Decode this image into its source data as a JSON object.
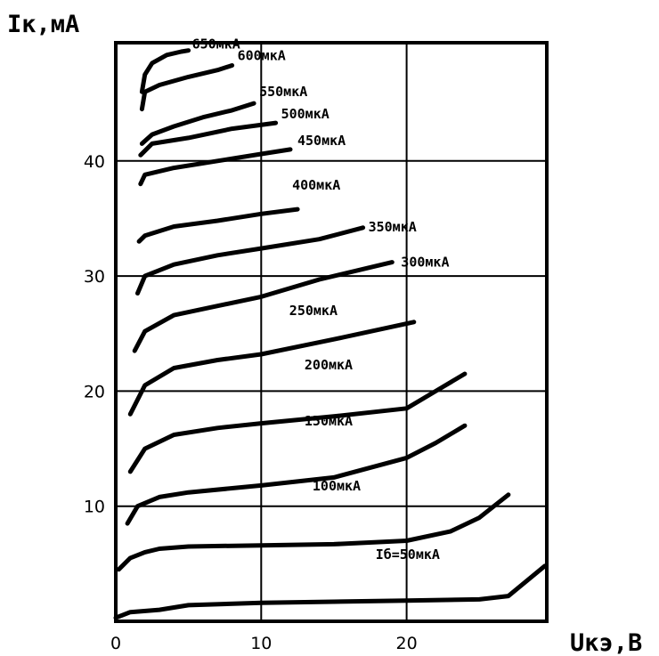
{
  "chart_data": {
    "type": "line",
    "title": "",
    "ylabel": "Iк,мА",
    "xlabel": "Uкэ,В",
    "xlim": [
      0,
      30
    ],
    "ylim": [
      0,
      50
    ],
    "x_ticks": [
      "0",
      "10",
      "20"
    ],
    "y_ticks": [
      "10",
      "20",
      "30",
      "40"
    ],
    "grid": true,
    "series": [
      {
        "name": "Iб=50мкА",
        "x": [
          0,
          1,
          3,
          5,
          10,
          15,
          20,
          25,
          27,
          29.5
        ],
        "y": [
          0.3,
          0.8,
          1.0,
          1.4,
          1.6,
          1.7,
          1.8,
          1.9,
          2.2,
          4.8
        ]
      },
      {
        "name": "100мкА",
        "x": [
          0.2,
          1,
          2,
          3,
          5,
          10,
          15,
          20,
          23,
          25,
          27
        ],
        "y": [
          4.5,
          5.5,
          6.0,
          6.3,
          6.5,
          6.6,
          6.7,
          7.0,
          7.8,
          9.0,
          11.0
        ]
      },
      {
        "name": "150мкА",
        "x": [
          0.8,
          1.5,
          3,
          5,
          10,
          15,
          20,
          22,
          24
        ],
        "y": [
          8.5,
          10.0,
          10.8,
          11.2,
          11.8,
          12.5,
          14.2,
          15.5,
          17.0
        ]
      },
      {
        "name": "200мкА",
        "x": [
          1,
          2,
          4,
          7,
          10,
          15,
          20,
          22,
          24
        ],
        "y": [
          13.0,
          15.0,
          16.2,
          16.8,
          17.2,
          17.8,
          18.5,
          20.0,
          21.5
        ]
      },
      {
        "name": "250мкА",
        "x": [
          1,
          2,
          4,
          7,
          10,
          15,
          20.5
        ],
        "y": [
          18.0,
          20.5,
          22.0,
          22.7,
          23.2,
          24.5,
          26.0
        ]
      },
      {
        "name": "300мкА",
        "x": [
          1.3,
          2,
          4,
          7,
          10,
          14,
          19
        ],
        "y": [
          23.5,
          25.2,
          26.6,
          27.4,
          28.2,
          29.7,
          31.2
        ]
      },
      {
        "name": "350мкА",
        "x": [
          1.5,
          2,
          4,
          7,
          10,
          14,
          17
        ],
        "y": [
          28.5,
          30.0,
          31.0,
          31.8,
          32.4,
          33.2,
          34.2
        ]
      },
      {
        "name": "400мкА",
        "x": [
          1.6,
          2,
          4,
          7,
          10,
          12.5
        ],
        "y": [
          33.0,
          33.5,
          34.3,
          34.8,
          35.4,
          35.8
        ]
      },
      {
        "name": "450мкА",
        "x": [
          1.7,
          2,
          4,
          7,
          10,
          12
        ],
        "y": [
          38.0,
          38.8,
          39.4,
          40.0,
          40.6,
          41.0
        ]
      },
      {
        "name": "500мкА",
        "x": [
          1.7,
          2.5,
          5,
          8,
          11
        ],
        "y": [
          40.5,
          41.5,
          42.0,
          42.8,
          43.3
        ]
      },
      {
        "name": "550мкА",
        "x": [
          1.8,
          2.5,
          4,
          6,
          8,
          9.5
        ],
        "y": [
          41.5,
          42.3,
          43.0,
          43.8,
          44.4,
          45.0
        ]
      },
      {
        "name": "600мкА",
        "x": [
          1.8,
          2,
          3,
          5,
          7,
          8
        ],
        "y": [
          44.5,
          46.0,
          46.6,
          47.3,
          47.9,
          48.3
        ]
      },
      {
        "name": "650мкА",
        "x": [
          1.8,
          2,
          2.5,
          3.5,
          4.5,
          5
        ],
        "y": [
          46.0,
          47.5,
          48.5,
          49.2,
          49.5,
          49.6
        ]
      }
    ]
  }
}
